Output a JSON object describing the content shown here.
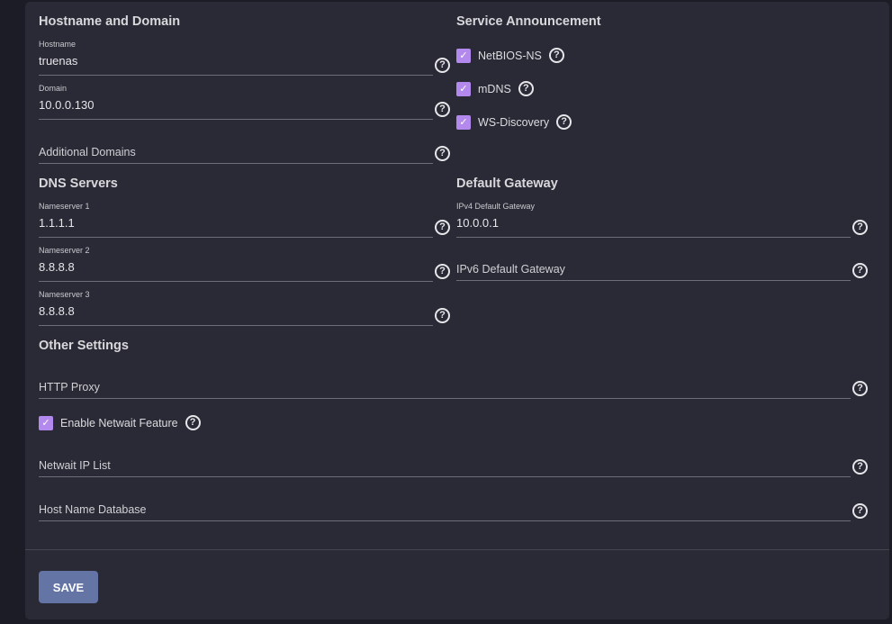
{
  "sections": {
    "hostname_domain": "Hostname and Domain",
    "service_announcement": "Service Announcement",
    "dns_servers": "DNS Servers",
    "default_gateway": "Default Gateway",
    "other_settings": "Other Settings"
  },
  "fields": {
    "hostname": {
      "label": "Hostname",
      "value": "truenas"
    },
    "domain": {
      "label": "Domain",
      "value": "10.0.0.130"
    },
    "additional_domains": {
      "placeholder": "Additional Domains"
    },
    "nameserver1": {
      "label": "Nameserver 1",
      "value": "1.1.1.1"
    },
    "nameserver2": {
      "label": "Nameserver 2",
      "value": "8.8.8.8"
    },
    "nameserver3": {
      "label": "Nameserver 3",
      "value": "8.8.8.8"
    },
    "ipv4_gateway": {
      "label": "IPv4 Default Gateway",
      "value": "10.0.0.1"
    },
    "ipv6_gateway": {
      "placeholder": "IPv6 Default Gateway"
    },
    "http_proxy": {
      "placeholder": "HTTP Proxy"
    },
    "netwait_ip_list": {
      "placeholder": "Netwait IP List"
    },
    "host_name_database": {
      "placeholder": "Host Name Database"
    }
  },
  "checkboxes": {
    "netbios": {
      "label": "NetBIOS-NS",
      "checked": true
    },
    "mdns": {
      "label": "mDNS",
      "checked": true
    },
    "wsd": {
      "label": "WS-Discovery",
      "checked": true
    },
    "netwait": {
      "label": "Enable Netwait Feature",
      "checked": true
    }
  },
  "help_glyph": "?",
  "check_glyph": "✓",
  "save_label": "SAVE",
  "colors": {
    "accent": "#b489ee",
    "save": "#6374a5",
    "card": "#292a35",
    "background": "#1b1c25"
  }
}
